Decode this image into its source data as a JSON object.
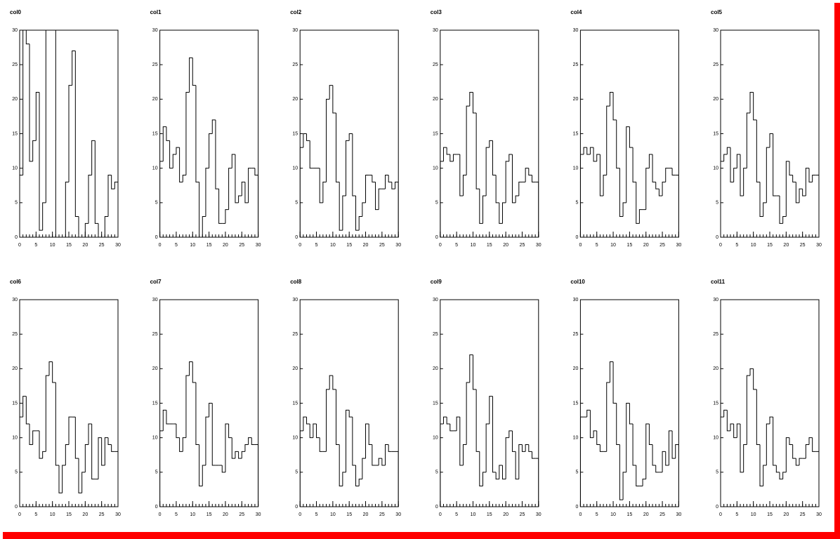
{
  "chart_data": [
    {
      "type": "histogram",
      "title": "col0",
      "bins": [
        0,
        1,
        2,
        3,
        4,
        5,
        6,
        7,
        8,
        9,
        10,
        11,
        12,
        13,
        14,
        15,
        16,
        17,
        18,
        19,
        20,
        21,
        22,
        23,
        24,
        25,
        26,
        27,
        28,
        29,
        30
      ],
      "values": [
        9,
        31,
        28,
        11,
        14,
        21,
        1,
        5,
        31,
        31,
        31,
        0,
        0,
        0,
        8,
        22,
        27,
        3,
        0,
        0,
        2,
        9,
        14,
        2,
        0,
        0,
        3,
        9,
        7,
        8
      ],
      "xlim": [
        0,
        30
      ],
      "ylim": [
        0,
        30
      ],
      "xticks": [
        0,
        5,
        10,
        15,
        20,
        25,
        30
      ],
      "yticks": [
        0,
        5,
        10,
        15,
        20,
        25,
        30
      ],
      "color": "#000000"
    },
    {
      "type": "histogram",
      "title": "col1",
      "bins": [
        0,
        1,
        2,
        3,
        4,
        5,
        6,
        7,
        8,
        9,
        10,
        11,
        12,
        13,
        14,
        15,
        16,
        17,
        18,
        19,
        20,
        21,
        22,
        23,
        24,
        25,
        26,
        27,
        28,
        29,
        30
      ],
      "values": [
        11,
        16,
        14,
        10,
        12,
        13,
        8,
        9,
        21,
        26,
        22,
        8,
        0,
        3,
        10,
        15,
        17,
        7,
        2,
        2,
        4,
        10,
        12,
        5,
        6,
        8,
        5,
        10,
        10,
        9
      ],
      "xlim": [
        0,
        30
      ],
      "ylim": [
        0,
        30
      ],
      "xticks": [
        0,
        5,
        10,
        15,
        20,
        25,
        30
      ],
      "yticks": [
        0,
        5,
        10,
        15,
        20,
        25,
        30
      ],
      "color": "#000000"
    },
    {
      "type": "histogram",
      "title": "col2",
      "bins": [
        0,
        1,
        2,
        3,
        4,
        5,
        6,
        7,
        8,
        9,
        10,
        11,
        12,
        13,
        14,
        15,
        16,
        17,
        18,
        19,
        20,
        21,
        22,
        23,
        24,
        25,
        26,
        27,
        28,
        29,
        30
      ],
      "values": [
        13,
        15,
        14,
        10,
        10,
        10,
        5,
        8,
        20,
        22,
        18,
        8,
        1,
        6,
        14,
        15,
        6,
        1,
        3,
        5,
        9,
        9,
        8,
        4,
        7,
        7,
        9,
        8,
        7,
        8
      ],
      "xlim": [
        0,
        30
      ],
      "ylim": [
        0,
        30
      ],
      "xticks": [
        0,
        5,
        10,
        15,
        20,
        25,
        30
      ],
      "yticks": [
        0,
        5,
        10,
        15,
        20,
        25,
        30
      ],
      "color": "#000000"
    },
    {
      "type": "histogram",
      "title": "col3",
      "bins": [
        0,
        1,
        2,
        3,
        4,
        5,
        6,
        7,
        8,
        9,
        10,
        11,
        12,
        13,
        14,
        15,
        16,
        17,
        18,
        19,
        20,
        21,
        22,
        23,
        24,
        25,
        26,
        27,
        28,
        29,
        30
      ],
      "values": [
        11,
        13,
        12,
        11,
        12,
        12,
        6,
        9,
        19,
        21,
        18,
        7,
        2,
        6,
        13,
        14,
        9,
        5,
        2,
        5,
        11,
        12,
        5,
        6,
        8,
        8,
        10,
        9,
        8,
        8
      ],
      "xlim": [
        0,
        30
      ],
      "ylim": [
        0,
        30
      ],
      "xticks": [
        0,
        5,
        10,
        15,
        20,
        25,
        30
      ],
      "yticks": [
        0,
        5,
        10,
        15,
        20,
        25,
        30
      ],
      "color": "#000000"
    },
    {
      "type": "histogram",
      "title": "col4",
      "bins": [
        0,
        1,
        2,
        3,
        4,
        5,
        6,
        7,
        8,
        9,
        10,
        11,
        12,
        13,
        14,
        15,
        16,
        17,
        18,
        19,
        20,
        21,
        22,
        23,
        24,
        25,
        26,
        27,
        28,
        29,
        30
      ],
      "values": [
        12,
        13,
        12,
        13,
        11,
        12,
        6,
        9,
        19,
        21,
        17,
        10,
        3,
        5,
        16,
        13,
        8,
        2,
        4,
        4,
        10,
        12,
        8,
        7,
        6,
        8,
        10,
        10,
        9,
        9
      ],
      "xlim": [
        0,
        30
      ],
      "ylim": [
        0,
        30
      ],
      "xticks": [
        0,
        5,
        10,
        15,
        20,
        25,
        30
      ],
      "yticks": [
        0,
        5,
        10,
        15,
        20,
        25,
        30
      ],
      "color": "#000000"
    },
    {
      "type": "histogram",
      "title": "col5",
      "bins": [
        0,
        1,
        2,
        3,
        4,
        5,
        6,
        7,
        8,
        9,
        10,
        11,
        12,
        13,
        14,
        15,
        16,
        17,
        18,
        19,
        20,
        21,
        22,
        23,
        24,
        25,
        26,
        27,
        28,
        29,
        30
      ],
      "values": [
        11,
        12,
        13,
        8,
        10,
        12,
        6,
        10,
        18,
        21,
        17,
        8,
        3,
        5,
        13,
        15,
        6,
        6,
        2,
        3,
        11,
        9,
        8,
        5,
        7,
        6,
        10,
        8,
        9,
        9
      ],
      "xlim": [
        0,
        30
      ],
      "ylim": [
        0,
        30
      ],
      "xticks": [
        0,
        5,
        10,
        15,
        20,
        25,
        30
      ],
      "yticks": [
        0,
        5,
        10,
        15,
        20,
        25,
        30
      ],
      "color": "#000000"
    },
    {
      "type": "histogram",
      "title": "col6",
      "bins": [
        0,
        1,
        2,
        3,
        4,
        5,
        6,
        7,
        8,
        9,
        10,
        11,
        12,
        13,
        14,
        15,
        16,
        17,
        18,
        19,
        20,
        21,
        22,
        23,
        24,
        25,
        26,
        27,
        28,
        29,
        30
      ],
      "values": [
        13,
        16,
        12,
        9,
        11,
        11,
        7,
        8,
        19,
        21,
        18,
        6,
        2,
        6,
        9,
        13,
        13,
        7,
        2,
        5,
        9,
        12,
        4,
        4,
        10,
        6,
        10,
        9,
        8,
        8
      ],
      "xlim": [
        0,
        30
      ],
      "ylim": [
        0,
        30
      ],
      "xticks": [
        0,
        5,
        10,
        15,
        20,
        25,
        30
      ],
      "yticks": [
        0,
        5,
        10,
        15,
        20,
        25,
        30
      ],
      "color": "#000000"
    },
    {
      "type": "histogram",
      "title": "col7",
      "bins": [
        0,
        1,
        2,
        3,
        4,
        5,
        6,
        7,
        8,
        9,
        10,
        11,
        12,
        13,
        14,
        15,
        16,
        17,
        18,
        19,
        20,
        21,
        22,
        23,
        24,
        25,
        26,
        27,
        28,
        29,
        30
      ],
      "values": [
        11,
        14,
        12,
        12,
        12,
        10,
        8,
        10,
        19,
        21,
        18,
        9,
        3,
        6,
        13,
        15,
        6,
        6,
        6,
        5,
        12,
        10,
        7,
        8,
        7,
        8,
        9,
        10,
        9,
        9
      ],
      "xlim": [
        0,
        30
      ],
      "ylim": [
        0,
        30
      ],
      "xticks": [
        0,
        5,
        10,
        15,
        20,
        25,
        30
      ],
      "yticks": [
        0,
        5,
        10,
        15,
        20,
        25,
        30
      ],
      "color": "#000000"
    },
    {
      "type": "histogram",
      "title": "col8",
      "bins": [
        0,
        1,
        2,
        3,
        4,
        5,
        6,
        7,
        8,
        9,
        10,
        11,
        12,
        13,
        14,
        15,
        16,
        17,
        18,
        19,
        20,
        21,
        22,
        23,
        24,
        25,
        26,
        27,
        28,
        29,
        30
      ],
      "values": [
        11,
        13,
        12,
        10,
        12,
        10,
        8,
        8,
        17,
        19,
        17,
        9,
        3,
        5,
        14,
        13,
        6,
        3,
        4,
        7,
        12,
        9,
        6,
        6,
        7,
        6,
        9,
        8,
        8,
        8
      ],
      "xlim": [
        0,
        30
      ],
      "ylim": [
        0,
        30
      ],
      "xticks": [
        0,
        5,
        10,
        15,
        20,
        25,
        30
      ],
      "yticks": [
        0,
        5,
        10,
        15,
        20,
        25,
        30
      ],
      "color": "#000000"
    },
    {
      "type": "histogram",
      "title": "col9",
      "bins": [
        0,
        1,
        2,
        3,
        4,
        5,
        6,
        7,
        8,
        9,
        10,
        11,
        12,
        13,
        14,
        15,
        16,
        17,
        18,
        19,
        20,
        21,
        22,
        23,
        24,
        25,
        26,
        27,
        28,
        29,
        30
      ],
      "values": [
        12,
        13,
        12,
        11,
        11,
        13,
        6,
        9,
        18,
        22,
        17,
        8,
        3,
        5,
        12,
        16,
        5,
        4,
        6,
        4,
        10,
        11,
        8,
        4,
        9,
        8,
        9,
        8,
        7,
        7
      ],
      "xlim": [
        0,
        30
      ],
      "ylim": [
        0,
        30
      ],
      "xticks": [
        0,
        5,
        10,
        15,
        20,
        25,
        30
      ],
      "yticks": [
        0,
        5,
        10,
        15,
        20,
        25,
        30
      ],
      "color": "#000000"
    },
    {
      "type": "histogram",
      "title": "col10",
      "bins": [
        0,
        1,
        2,
        3,
        4,
        5,
        6,
        7,
        8,
        9,
        10,
        11,
        12,
        13,
        14,
        15,
        16,
        17,
        18,
        19,
        20,
        21,
        22,
        23,
        24,
        25,
        26,
        27,
        28,
        29,
        30
      ],
      "values": [
        13,
        13,
        14,
        10,
        11,
        9,
        8,
        8,
        18,
        21,
        15,
        9,
        1,
        5,
        15,
        12,
        6,
        3,
        3,
        4,
        12,
        9,
        6,
        5,
        5,
        8,
        6,
        11,
        7,
        9
      ],
      "xlim": [
        0,
        30
      ],
      "ylim": [
        0,
        30
      ],
      "xticks": [
        0,
        5,
        10,
        15,
        20,
        25,
        30
      ],
      "yticks": [
        0,
        5,
        10,
        15,
        20,
        25,
        30
      ],
      "color": "#000000"
    },
    {
      "type": "histogram",
      "title": "col11",
      "bins": [
        0,
        1,
        2,
        3,
        4,
        5,
        6,
        7,
        8,
        9,
        10,
        11,
        12,
        13,
        14,
        15,
        16,
        17,
        18,
        19,
        20,
        21,
        22,
        23,
        24,
        25,
        26,
        27,
        28,
        29,
        30
      ],
      "values": [
        13,
        14,
        11,
        12,
        10,
        12,
        5,
        9,
        19,
        20,
        17,
        9,
        3,
        6,
        12,
        13,
        6,
        5,
        4,
        5,
        10,
        9,
        7,
        6,
        7,
        7,
        9,
        10,
        8,
        8
      ],
      "xlim": [
        0,
        30
      ],
      "ylim": [
        0,
        30
      ],
      "xticks": [
        0,
        5,
        10,
        15,
        20,
        25,
        30
      ],
      "yticks": [
        0,
        5,
        10,
        15,
        20,
        25,
        30
      ],
      "color": "#000000"
    }
  ]
}
